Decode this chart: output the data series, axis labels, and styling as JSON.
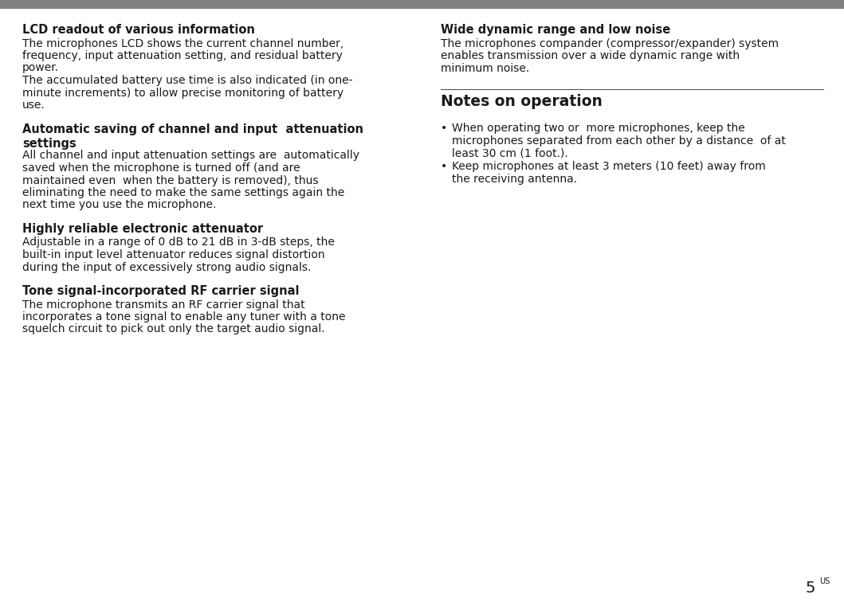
{
  "background_color": "#ffffff",
  "top_bar_color": "#808080",
  "page_number": "5",
  "page_superscript": "US",
  "left_sections": [
    {
      "title": "LCD readout of various information",
      "body_lines": [
        "The microphones LCD shows the current channel number,",
        "frequency, input attenuation setting, and residual battery",
        "power.",
        "The accumulated battery use time is also indicated (in one-",
        "minute increments) to allow precise monitoring of battery",
        "use."
      ]
    },
    {
      "title": "Automatic saving of channel and input  attenuation\nsettings",
      "body_lines": [
        "All channel and input attenuation settings are  automatically",
        "saved when the microphone is turned off (and are",
        "maintained even  when the battery is removed), thus",
        "eliminating the need to make the same settings again the",
        "next time you use the microphone."
      ]
    },
    {
      "title": "Highly reliable electronic attenuator",
      "body_lines": [
        "Adjustable in a range of 0 dB to 21 dB in 3-dB steps, the",
        "built-in input level attenuator reduces signal distortion",
        "during the input of excessively strong audio signals."
      ]
    },
    {
      "title": "Tone signal-incorporated RF carrier signal",
      "body_lines": [
        "The microphone transmits an RF carrier signal that",
        "incorporates a tone signal to enable any tuner with a tone",
        "squelch circuit to pick out only the target audio signal."
      ]
    }
  ],
  "right_sections": [
    {
      "title": "Wide dynamic range and low noise",
      "body_lines": [
        "The microphones compander (compressor/expander) system",
        "enables transmission over a wide dynamic range with",
        "minimum noise."
      ]
    }
  ],
  "notes_title": "Notes on operation",
  "bullet1_lines": [
    "When operating two or  more microphones, keep the",
    "microphones separated from each other by a distance  of at",
    "least 30 cm (1 foot.)."
  ],
  "bullet2_lines": [
    "Keep microphones at least 3 meters (10 feet) away from",
    "the receiving antenna."
  ],
  "title_fontsize": 10.5,
  "body_fontsize": 10.0,
  "notes_title_fontsize": 13.5,
  "text_color": "#1a1a1a"
}
